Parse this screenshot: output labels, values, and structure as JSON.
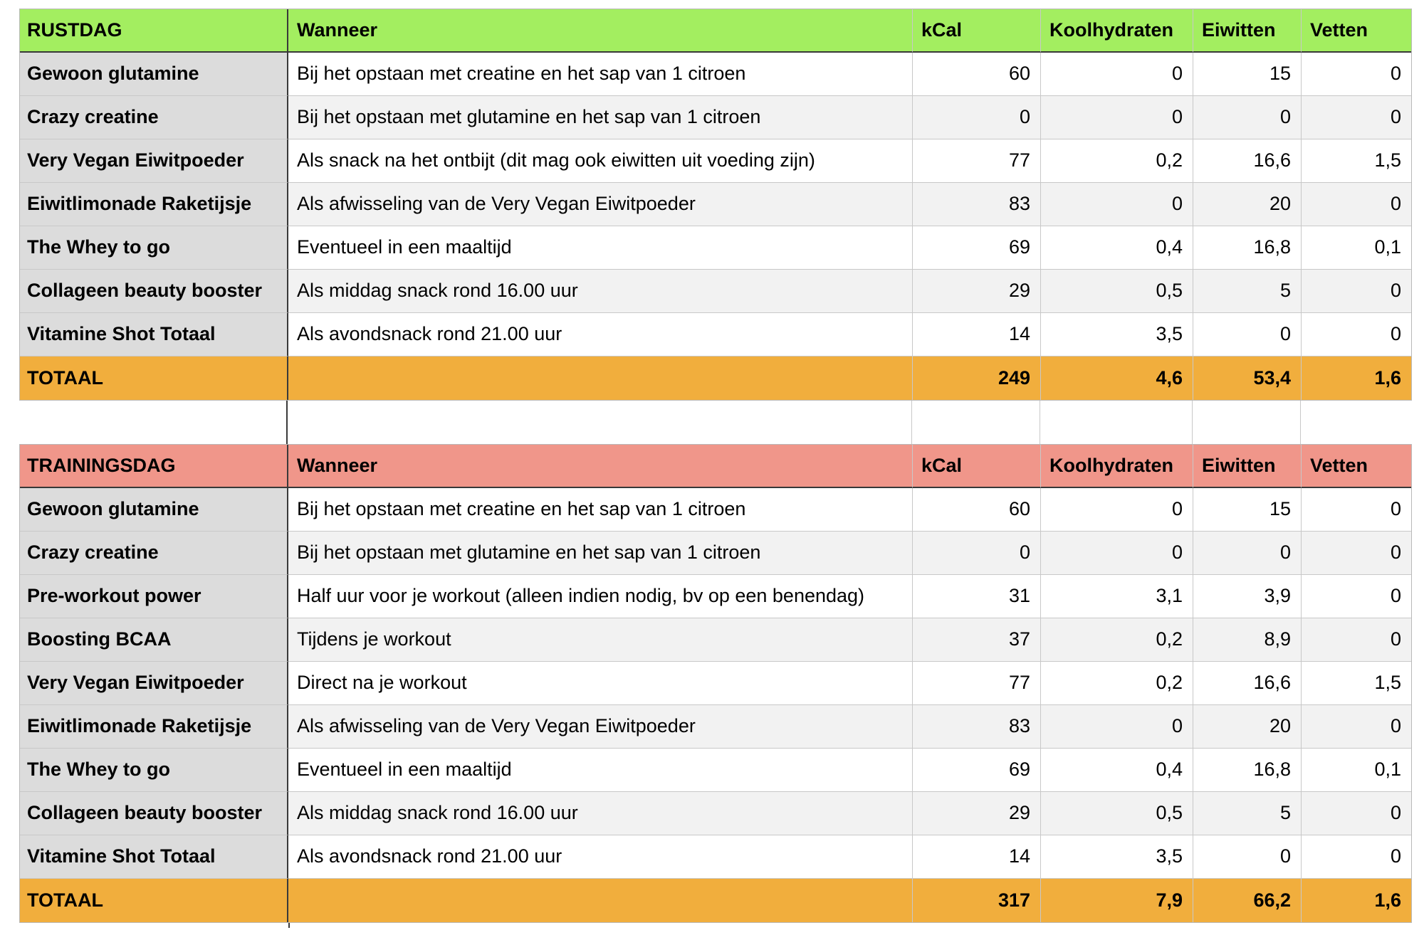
{
  "columns": {
    "when": "Wanneer",
    "kcal": "kCal",
    "carbs": "Koolhydraten",
    "protein": "Eiwitten",
    "fat": "Vetten"
  },
  "colors": {
    "rustdag_header": "#a3ee60",
    "trainingsdag_header": "#f0968a",
    "total_row": "#f1ae3d",
    "name_column": "#dcdcdc",
    "row_stripe": "#f2f2f2",
    "dark_divider": "#3a3a3a",
    "grid_line": "#c8c8c8"
  },
  "rustdag": {
    "title": "RUSTDAG",
    "rows": [
      {
        "name": "Gewoon glutamine",
        "when": "Bij het opstaan met creatine en het sap van 1 citroen",
        "kcal": "60",
        "carbs": "0",
        "protein": "15",
        "fat": "0"
      },
      {
        "name": "Crazy creatine",
        "when": "Bij het opstaan met glutamine en het sap van 1 citroen",
        "kcal": "0",
        "carbs": "0",
        "protein": "0",
        "fat": "0"
      },
      {
        "name": "Very Vegan Eiwitpoeder",
        "when": "Als snack na het ontbijt (dit mag ook eiwitten uit voeding zijn)",
        "kcal": "77",
        "carbs": "0,2",
        "protein": "16,6",
        "fat": "1,5"
      },
      {
        "name": "Eiwitlimonade Raketijsje",
        "when": "Als afwisseling van de Very Vegan Eiwitpoeder",
        "kcal": "83",
        "carbs": "0",
        "protein": "20",
        "fat": "0"
      },
      {
        "name": "The Whey to go",
        "when": "Eventueel in een maaltijd",
        "kcal": "69",
        "carbs": "0,4",
        "protein": "16,8",
        "fat": "0,1"
      },
      {
        "name": "Collageen beauty booster",
        "when": "Als middag snack rond 16.00 uur",
        "kcal": "29",
        "carbs": "0,5",
        "protein": "5",
        "fat": "0"
      },
      {
        "name": "Vitamine Shot Totaal",
        "when": "Als avondsnack rond 21.00 uur",
        "kcal": "14",
        "carbs": "3,5",
        "protein": "0",
        "fat": "0"
      }
    ],
    "total": {
      "label": "TOTAAL",
      "kcal": "249",
      "carbs": "4,6",
      "protein": "53,4",
      "fat": "1,6"
    }
  },
  "trainingsdag": {
    "title": "TRAININGSDAG",
    "rows": [
      {
        "name": "Gewoon glutamine",
        "when": "Bij het opstaan met creatine en het sap van 1 citroen",
        "kcal": "60",
        "carbs": "0",
        "protein": "15",
        "fat": "0"
      },
      {
        "name": "Crazy creatine",
        "when": "Bij het opstaan met glutamine en het sap van 1 citroen",
        "kcal": "0",
        "carbs": "0",
        "protein": "0",
        "fat": "0"
      },
      {
        "name": "Pre-workout power",
        "when": "Half uur voor je workout (alleen indien nodig, bv op een benendag)",
        "kcal": "31",
        "carbs": "3,1",
        "protein": "3,9",
        "fat": "0"
      },
      {
        "name": "Boosting BCAA",
        "when": "Tijdens je workout",
        "kcal": "37",
        "carbs": "0,2",
        "protein": "8,9",
        "fat": "0"
      },
      {
        "name": "Very Vegan Eiwitpoeder",
        "when": "Direct na je workout",
        "kcal": "77",
        "carbs": "0,2",
        "protein": "16,6",
        "fat": "1,5"
      },
      {
        "name": "Eiwitlimonade Raketijsje",
        "when": "Als afwisseling van de Very Vegan Eiwitpoeder",
        "kcal": "83",
        "carbs": "0",
        "protein": "20",
        "fat": "0"
      },
      {
        "name": "The Whey to go",
        "when": "Eventueel in een maaltijd",
        "kcal": "69",
        "carbs": "0,4",
        "protein": "16,8",
        "fat": "0,1"
      },
      {
        "name": "Collageen beauty booster",
        "when": "Als middag snack rond 16.00 uur",
        "kcal": "29",
        "carbs": "0,5",
        "protein": "5",
        "fat": "0"
      },
      {
        "name": "Vitamine Shot Totaal",
        "when": "Als avondsnack rond 21.00 uur",
        "kcal": "14",
        "carbs": "3,5",
        "protein": "0",
        "fat": "0"
      }
    ],
    "total": {
      "label": "TOTAAL",
      "kcal": "317",
      "carbs": "7,9",
      "protein": "66,2",
      "fat": "1,6"
    }
  }
}
